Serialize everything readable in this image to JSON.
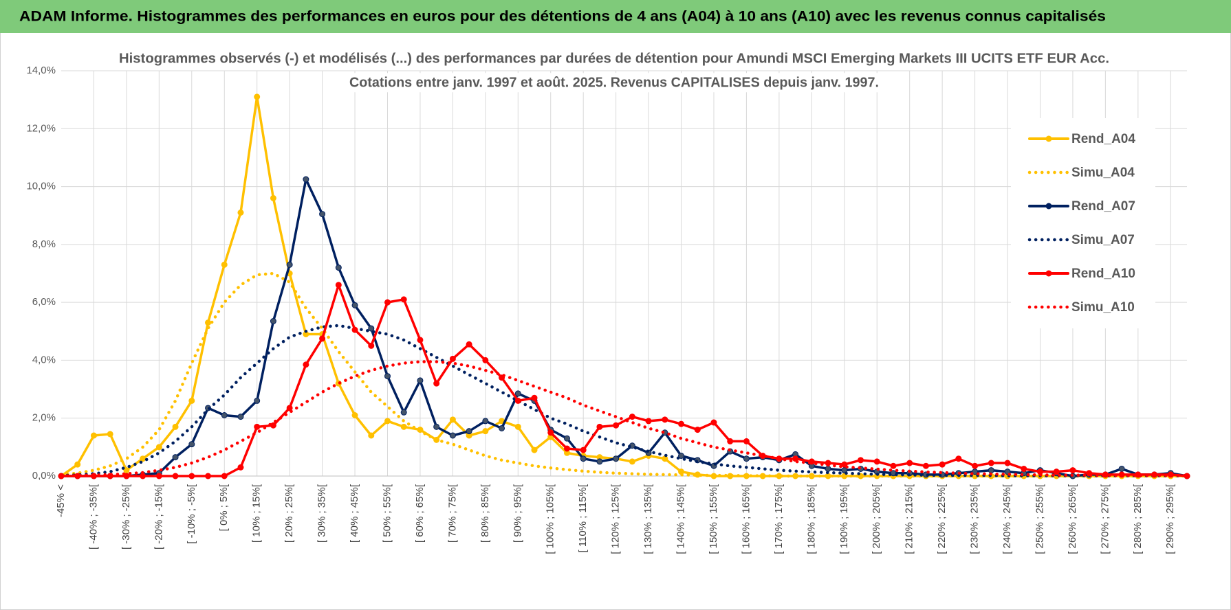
{
  "header": {
    "title": "ADAM Informe. Histogrammes des performances en euros pour des détentions de 4 ans (A04) à 10 ans (A10) avec les revenus connus capitalisés"
  },
  "chart_data": {
    "type": "line",
    "title": "Histogrammes observés (-) et modélisés (...) des performances par durées de détention pour Amundi MSCI Emerging Markets III UCITS ETF EUR Acc.",
    "subtitle": "Cotations entre janv. 1997 et août. 2025. Revenus CAPITALISES depuis janv. 1997.",
    "categories": [
      "-45% <",
      null,
      "[ -40% ; -35%[",
      null,
      "[ -30% ; -25%[",
      null,
      "[ -20% ; -15%[",
      null,
      "[ -10% ; -5%[",
      null,
      "[ 0% ; 5%[",
      null,
      "[ 10% ; 15%[",
      null,
      "[ 20% ; 25%[",
      null,
      "[ 30% ; 35%[",
      null,
      "[ 40% ; 45%[",
      null,
      "[ 50% ; 55%[",
      null,
      "[ 60% ; 65%[",
      null,
      "[ 70% ; 75%[",
      null,
      "[ 80% ; 85%[",
      null,
      "[ 90% ; 95%[",
      null,
      "[ 100% ; 105%[",
      null,
      "[ 110% ; 115%[",
      null,
      "[ 120% ; 125%[",
      null,
      "[ 130% ; 135%[",
      null,
      "[ 140% ; 145%[",
      null,
      "[ 150% ; 155%[",
      null,
      "[ 160% ; 165%[",
      null,
      "[ 170% ; 175%[",
      null,
      "[ 180% ; 185%[",
      null,
      "[ 190% ; 195%[",
      null,
      "[ 200% ; 205%[",
      null,
      "[ 210% ; 215%[",
      null,
      "[ 220% ; 225%[",
      null,
      "[ 230% ; 235%[",
      null,
      "[ 240% ; 245%[",
      null,
      "[ 250% ; 255%[",
      null,
      "[ 260% ; 265%[",
      null,
      "[ 270% ; 275%[",
      null,
      "[ 280% ; 285%[",
      null,
      "[ 290% ; 295%[",
      null
    ],
    "series": [
      {
        "name": "Rend_A04",
        "color": "#FFC000",
        "style": "solid",
        "markers": true,
        "values": [
          0.0,
          0.4,
          1.4,
          1.45,
          0.2,
          0.6,
          1.0,
          1.7,
          2.6,
          5.3,
          7.3,
          9.1,
          13.1,
          9.6,
          7.0,
          4.9,
          4.9,
          3.2,
          2.1,
          1.4,
          1.9,
          1.7,
          1.6,
          1.25,
          1.95,
          1.4,
          1.55,
          1.9,
          1.7,
          0.9,
          1.35,
          0.8,
          0.7,
          0.65,
          0.6,
          0.5,
          0.7,
          0.6,
          0.15,
          0.05,
          0,
          0,
          0,
          0,
          0,
          0,
          0,
          0,
          0,
          0,
          0,
          0,
          0,
          0,
          0,
          0,
          0,
          0,
          0,
          0,
          0,
          0,
          0,
          0,
          0,
          0,
          0,
          0,
          0,
          0
        ]
      },
      {
        "name": "Simu_A04",
        "color": "#FFC000",
        "style": "dotted",
        "markers": false,
        "values": [
          0.05,
          0.1,
          0.2,
          0.35,
          0.6,
          1.0,
          1.6,
          2.6,
          3.9,
          5.1,
          6.0,
          6.6,
          6.95,
          7.0,
          6.7,
          5.8,
          5.1,
          4.3,
          3.6,
          2.9,
          2.4,
          1.9,
          1.55,
          1.25,
          1.1,
          0.9,
          0.7,
          0.55,
          0.45,
          0.35,
          0.28,
          0.22,
          0.17,
          0.13,
          0.1,
          0.08,
          0.06,
          0.05,
          0.04,
          0.03,
          0.02,
          0.02,
          0.01,
          0.01,
          0,
          0,
          0,
          0,
          0,
          0,
          0,
          0,
          0,
          0,
          0,
          0,
          0,
          0,
          0,
          0,
          0,
          0,
          0,
          0,
          0,
          0,
          0,
          0,
          0,
          0
        ]
      },
      {
        "name": "Rend_A07",
        "color": "#002060",
        "style": "solid",
        "markers": true,
        "values": [
          0,
          0,
          0,
          0,
          0,
          0.05,
          0.1,
          0.65,
          1.1,
          2.35,
          2.1,
          2.05,
          2.6,
          5.35,
          7.3,
          10.25,
          9.05,
          7.2,
          5.9,
          5.1,
          3.45,
          2.2,
          3.3,
          1.7,
          1.4,
          1.55,
          1.9,
          1.65,
          2.85,
          2.6,
          1.6,
          1.3,
          0.6,
          0.5,
          0.6,
          1.05,
          0.8,
          1.5,
          0.7,
          0.55,
          0.35,
          0.85,
          0.6,
          0.65,
          0.55,
          0.75,
          0.35,
          0.25,
          0.2,
          0.25,
          0.15,
          0.1,
          0.1,
          0.05,
          0.05,
          0.1,
          0.15,
          0.2,
          0.15,
          0.1,
          0.2,
          0.1,
          0.0,
          0.05,
          0.05,
          0.25,
          0.05,
          0.05,
          0.1,
          0.0
        ]
      },
      {
        "name": "Simu_A07",
        "color": "#002060",
        "style": "dotted",
        "markers": false,
        "values": [
          0.02,
          0.04,
          0.08,
          0.15,
          0.3,
          0.5,
          0.8,
          1.2,
          1.7,
          2.3,
          2.8,
          3.4,
          3.9,
          4.4,
          4.8,
          5.0,
          5.15,
          5.2,
          5.1,
          5.0,
          4.9,
          4.7,
          4.4,
          4.1,
          3.8,
          3.5,
          3.2,
          2.9,
          2.6,
          2.3,
          2.0,
          1.8,
          1.55,
          1.35,
          1.15,
          1.0,
          0.85,
          0.72,
          0.6,
          0.5,
          0.42,
          0.35,
          0.3,
          0.25,
          0.2,
          0.17,
          0.14,
          0.12,
          0.1,
          0.08,
          0.06,
          0.05,
          0.04,
          0.03,
          0.02,
          0.02,
          0.02,
          0.02,
          0.01,
          0.01,
          0.01,
          0.01,
          0.01,
          0.01,
          0.01,
          0.01,
          0.01,
          0.01,
          0.01,
          0.01
        ]
      },
      {
        "name": "Rend_A10",
        "color": "#FF0000",
        "style": "solid",
        "markers": true,
        "values": [
          0,
          0,
          0,
          0,
          0,
          0,
          0,
          0,
          0,
          0,
          0,
          0.3,
          1.7,
          1.75,
          2.35,
          3.85,
          4.75,
          6.6,
          5.05,
          4.5,
          6.0,
          6.1,
          4.7,
          3.2,
          4.05,
          4.55,
          4.0,
          3.4,
          2.6,
          2.7,
          1.5,
          0.95,
          0.9,
          1.7,
          1.75,
          2.05,
          1.9,
          1.95,
          1.8,
          1.6,
          1.85,
          1.2,
          1.2,
          0.7,
          0.6,
          0.6,
          0.5,
          0.45,
          0.4,
          0.55,
          0.5,
          0.35,
          0.45,
          0.35,
          0.4,
          0.6,
          0.35,
          0.45,
          0.45,
          0.25,
          0.15,
          0.15,
          0.2,
          0.1,
          0.05,
          0.05,
          0.05,
          0.05,
          0.05,
          0.0
        ]
      },
      {
        "name": "Simu_A10",
        "color": "#FF0000",
        "style": "dotted",
        "markers": false,
        "values": [
          0,
          0.02,
          0.03,
          0.05,
          0.08,
          0.12,
          0.2,
          0.3,
          0.45,
          0.65,
          0.9,
          1.2,
          1.5,
          1.85,
          2.2,
          2.55,
          2.9,
          3.2,
          3.45,
          3.65,
          3.8,
          3.9,
          3.95,
          3.95,
          3.9,
          3.8,
          3.65,
          3.5,
          3.3,
          3.1,
          2.9,
          2.7,
          2.45,
          2.25,
          2.05,
          1.85,
          1.65,
          1.5,
          1.3,
          1.15,
          1.0,
          0.9,
          0.8,
          0.7,
          0.6,
          0.5,
          0.45,
          0.38,
          0.32,
          0.28,
          0.24,
          0.2,
          0.17,
          0.14,
          0.12,
          0.1,
          0.08,
          0.07,
          0.06,
          0.05,
          0.04,
          0.03,
          0.03,
          0.03,
          0.02,
          0.02,
          0.02,
          0.02,
          0.02,
          0.02
        ]
      }
    ],
    "ylim": [
      0,
      14
    ],
    "yticks": [
      {
        "value": 0,
        "label": "0,0%"
      },
      {
        "value": 2,
        "label": "2,0%"
      },
      {
        "value": 4,
        "label": "4,0%"
      },
      {
        "value": 6,
        "label": "6,0%"
      },
      {
        "value": 8,
        "label": "8,0%"
      },
      {
        "value": 10,
        "label": "10,0%"
      },
      {
        "value": 12,
        "label": "12,0%"
      },
      {
        "value": 14,
        "label": "14,0%"
      }
    ],
    "grid": true,
    "legend": "right"
  }
}
